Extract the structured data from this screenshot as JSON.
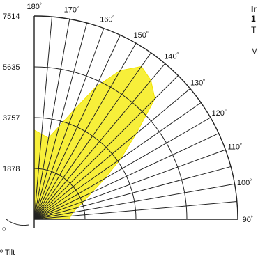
{
  "chart_data": {
    "type": "polar",
    "title": "",
    "radial_ticks": [
      "1878",
      "3757",
      "5635",
      "7514"
    ],
    "radial_max": 7514,
    "angle_ticks": [
      "180",
      "170",
      "160",
      "150",
      "140",
      "130",
      "120",
      "110",
      "100",
      "90"
    ],
    "angle_unit": "º",
    "tilt_label": "º Tilt",
    "series": [
      {
        "color": "#f7ef3a",
        "points": [
          {
            "angle": 180,
            "value": 3300
          },
          {
            "angle": 170,
            "value": 3050
          },
          {
            "angle": 160,
            "value": 4300
          },
          {
            "angle": 155,
            "value": 5400
          },
          {
            "angle": 150,
            "value": 6350
          },
          {
            "angle": 145,
            "value": 6900
          },
          {
            "angle": 140,
            "value": 6700
          },
          {
            "angle": 135,
            "value": 6300
          },
          {
            "angle": 130,
            "value": 4900
          },
          {
            "angle": 125,
            "value": 3900
          },
          {
            "angle": 120,
            "value": 3000
          },
          {
            "angle": 115,
            "value": 2350
          },
          {
            "angle": 110,
            "value": 1950
          },
          {
            "angle": 105,
            "value": 1650
          },
          {
            "angle": 100,
            "value": 1450
          },
          {
            "angle": 95,
            "value": 1350
          },
          {
            "angle": 90,
            "value": 1300
          }
        ]
      }
    ],
    "grid": true
  },
  "side_text": {
    "line1": "Ir",
    "line2": "1",
    "line3": "T",
    "line4": "M"
  }
}
